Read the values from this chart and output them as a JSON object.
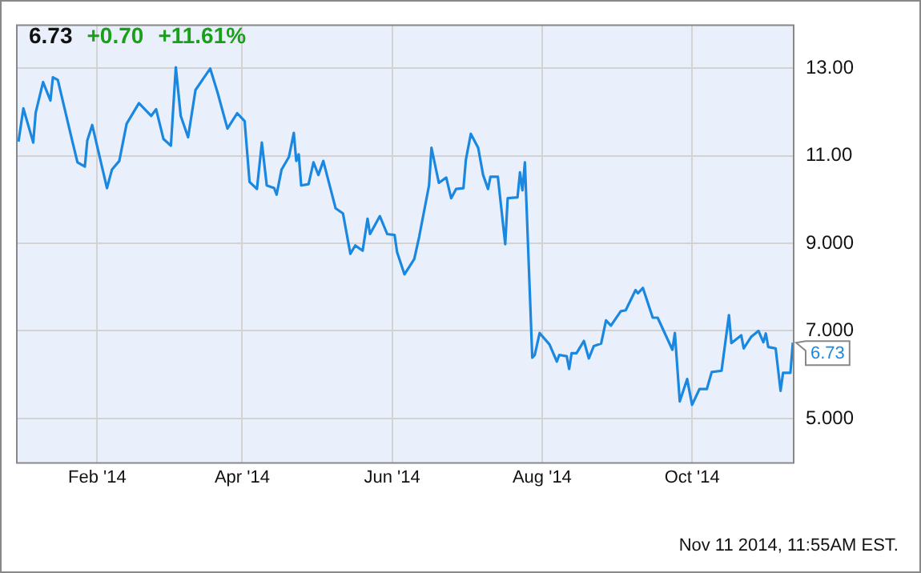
{
  "chart_data": {
    "type": "line",
    "x": [
      "2013-12-31",
      "2014-01-02",
      "2014-01-06",
      "2014-01-07",
      "2014-01-10",
      "2014-01-13",
      "2014-01-14",
      "2014-01-16",
      "2014-01-22",
      "2014-01-24",
      "2014-01-27",
      "2014-01-28",
      "2014-01-30",
      "2014-02-05",
      "2014-02-07",
      "2014-02-10",
      "2014-02-13",
      "2014-02-18",
      "2014-02-23",
      "2014-02-25",
      "2014-02-28",
      "2014-03-03",
      "2014-03-05",
      "2014-03-07",
      "2014-03-10",
      "2014-03-13",
      "2014-03-19",
      "2014-03-22",
      "2014-03-26",
      "2014-03-30",
      "2014-04-02",
      "2014-04-04",
      "2014-04-07",
      "2014-04-09",
      "2014-04-11",
      "2014-04-14",
      "2014-04-15",
      "2014-04-17",
      "2014-04-20",
      "2014-04-22",
      "2014-04-23",
      "2014-04-24",
      "2014-04-25",
      "2014-04-28",
      "2014-04-30",
      "2014-05-02",
      "2014-05-04",
      "2014-05-09",
      "2014-05-12",
      "2014-05-15",
      "2014-05-17",
      "2014-05-20",
      "2014-05-22",
      "2014-05-23",
      "2014-05-27",
      "2014-05-30",
      "2014-06-02",
      "2014-06-03",
      "2014-06-06",
      "2014-06-10",
      "2014-06-12",
      "2014-06-16",
      "2014-06-17",
      "2014-06-20",
      "2014-06-23",
      "2014-06-25",
      "2014-06-27",
      "2014-06-30",
      "2014-07-01",
      "2014-07-03",
      "2014-07-06",
      "2014-07-08",
      "2014-07-10",
      "2014-07-11",
      "2014-07-14",
      "2014-07-17",
      "2014-07-18",
      "2014-07-22",
      "2014-07-23",
      "2014-07-24",
      "2014-07-25",
      "2014-07-28",
      "2014-07-29",
      "2014-07-31",
      "2014-08-04",
      "2014-08-07",
      "2014-08-08",
      "2014-08-11",
      "2014-08-12",
      "2014-08-13",
      "2014-08-15",
      "2014-08-18",
      "2014-08-20",
      "2014-08-22",
      "2014-08-25",
      "2014-08-27",
      "2014-08-29",
      "2014-09-02",
      "2014-09-04",
      "2014-09-08",
      "2014-09-09",
      "2014-09-11",
      "2014-09-15",
      "2014-09-17",
      "2014-09-23",
      "2014-09-24",
      "2014-09-26",
      "2014-09-29",
      "2014-10-01",
      "2014-10-04",
      "2014-10-07",
      "2014-10-09",
      "2014-10-13",
      "2014-10-16",
      "2014-10-17",
      "2014-10-21",
      "2014-10-22",
      "2014-10-25",
      "2014-10-28",
      "2014-10-30",
      "2014-10-31",
      "2014-11-01",
      "2014-11-04",
      "2014-11-06",
      "2014-11-07",
      "2014-11-10",
      "2014-11-11"
    ],
    "series": [
      {
        "color": "#1a88e0",
        "values": [
          11.32,
          12.08,
          11.3,
          11.98,
          12.68,
          12.26,
          12.79,
          12.73,
          11.31,
          10.85,
          10.75,
          11.35,
          11.7,
          10.26,
          10.68,
          10.88,
          11.73,
          12.2,
          11.91,
          12.06,
          11.38,
          11.23,
          13.02,
          11.91,
          11.42,
          12.5,
          12.99,
          12.44,
          11.62,
          11.97,
          11.79,
          10.4,
          10.24,
          11.3,
          10.32,
          10.26,
          10.11,
          10.68,
          10.97,
          11.52,
          10.88,
          11.03,
          10.32,
          10.35,
          10.85,
          10.56,
          10.88,
          9.8,
          9.68,
          8.76,
          8.95,
          8.83,
          9.56,
          9.21,
          9.62,
          9.21,
          9.19,
          8.8,
          8.29,
          8.64,
          9.15,
          10.32,
          11.18,
          10.38,
          10.5,
          10.03,
          10.24,
          10.26,
          10.91,
          11.5,
          11.18,
          10.56,
          10.24,
          10.52,
          10.52,
          8.98,
          10.03,
          10.05,
          10.62,
          10.21,
          10.85,
          6.39,
          6.45,
          6.95,
          6.69,
          6.3,
          6.45,
          6.42,
          6.13,
          6.49,
          6.49,
          6.77,
          6.37,
          6.65,
          6.71,
          7.24,
          7.12,
          7.45,
          7.47,
          7.93,
          7.86,
          7.98,
          7.3,
          7.3,
          6.57,
          6.95,
          5.39,
          5.9,
          5.31,
          5.67,
          5.67,
          6.06,
          6.09,
          7.36,
          6.72,
          6.9,
          6.6,
          6.86,
          7.0,
          6.74,
          6.94,
          6.63,
          6.6,
          5.63,
          6.04,
          6.04,
          6.73
        ]
      }
    ],
    "xlim": [
      "2013-12-30",
      "2014-11-11"
    ],
    "xticks": [
      {
        "value": "2014-02-01",
        "label": "Feb '14"
      },
      {
        "value": "2014-04-01",
        "label": "Apr '14"
      },
      {
        "value": "2014-06-01",
        "label": "Jun '14"
      },
      {
        "value": "2014-08-01",
        "label": "Aug '14"
      },
      {
        "value": "2014-10-01",
        "label": "Oct '14"
      }
    ],
    "ylim": [
      4,
      14
    ],
    "yticks": [
      {
        "value": 5,
        "label": "5.000"
      },
      {
        "value": 7,
        "label": "7.000"
      },
      {
        "value": 9,
        "label": "9.000"
      },
      {
        "value": 11,
        "label": "11.00"
      },
      {
        "value": 13,
        "label": "13.00"
      }
    ],
    "grid": true,
    "legend": false,
    "marker": "none",
    "line_style": "solid",
    "annotations": [
      "6.73",
      "+0.70",
      "+11.61%",
      {
        "text": "6.73",
        "x": "2014-11-11",
        "y": 6.73
      },
      "Nov 11 2014, 11:55AM EST."
    ]
  }
}
